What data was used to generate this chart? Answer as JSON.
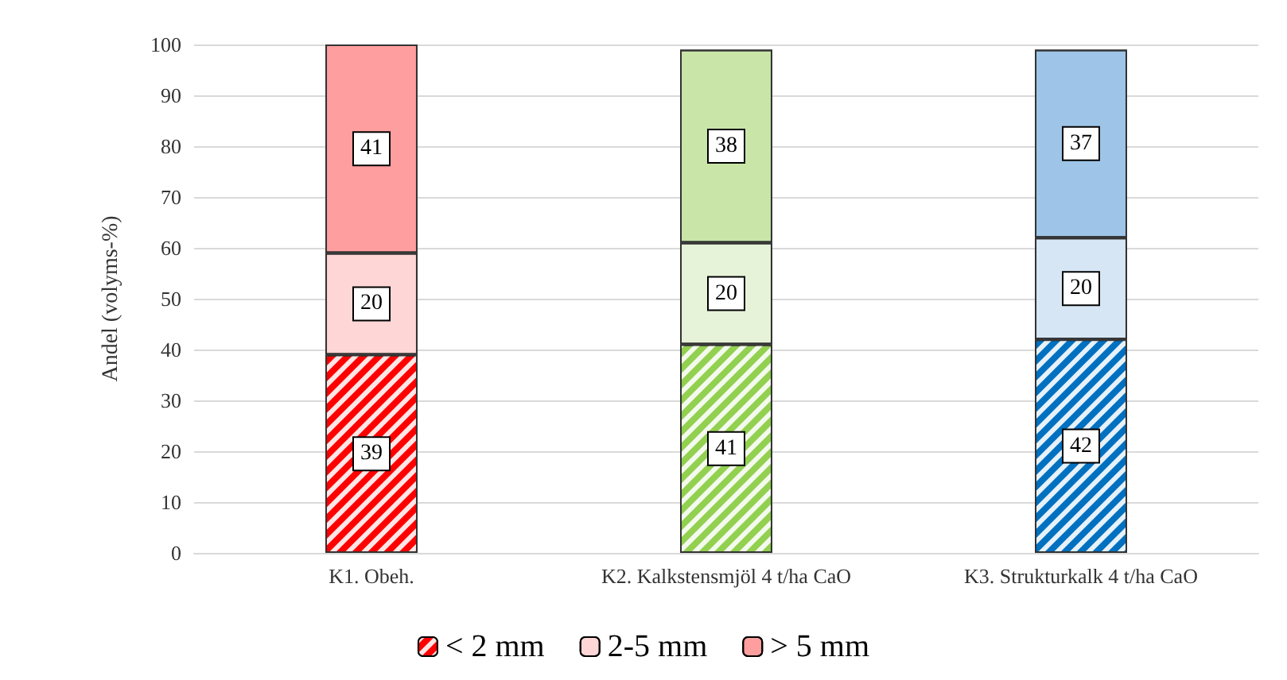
{
  "chart_data": {
    "type": "bar",
    "stacked": true,
    "ylabel": "Andel (volyms-%)",
    "categories": [
      "K1. Obeh.",
      "K2. Kalkstensmjöl 4 t/ha CaO",
      "K3. Strukturkalk 4 t/ha CaO"
    ],
    "series": [
      {
        "name": "< 2 mm",
        "values": [
          39,
          41,
          42
        ],
        "colors": [
          "#ff0000",
          "#92d050",
          "#0070c0"
        ]
      },
      {
        "name": "2-5 mm",
        "values": [
          20,
          20,
          20
        ],
        "colors": [
          "#ffd6d6",
          "#e6f3d8",
          "#d6e6f5"
        ]
      },
      {
        "name": "> 5 mm",
        "values": [
          41,
          38,
          37
        ],
        "colors": [
          "#ff9e9e",
          "#c9e6a8",
          "#9ec5e8"
        ]
      }
    ],
    "ylim": [
      0,
      100
    ],
    "yticks": [
      0,
      10,
      20,
      30,
      40,
      50,
      60,
      70,
      80,
      90,
      100
    ],
    "grid": "y",
    "legend": "bottom",
    "data_labels": true
  }
}
